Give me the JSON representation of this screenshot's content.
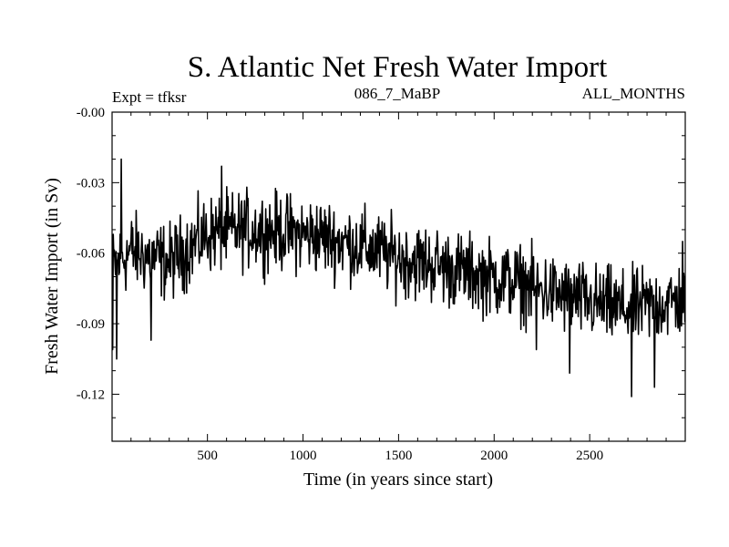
{
  "chart_data": {
    "type": "line",
    "title": "S. Atlantic Net Fresh Water Import",
    "subtitle_left": "Expt = tfksr",
    "subtitle_center": "086_7_MaBP",
    "subtitle_right": "ALL_MONTHS",
    "xlabel": "Time (in years since start)",
    "ylabel": "Fresh Water Import (in Sv)",
    "xlim": [
      1,
      3000
    ],
    "ylim": [
      -0.14,
      0.0
    ],
    "x_ticks": [
      500,
      1000,
      1500,
      2000,
      2500
    ],
    "x_tick_labels": [
      "500",
      "1000",
      "1500",
      "2000",
      "2500"
    ],
    "y_ticks": [
      0.0,
      -0.03,
      -0.06,
      -0.09,
      -0.12
    ],
    "y_tick_labels": [
      "-0.00",
      "-0.03",
      "-0.06",
      "-0.09",
      "-0.12"
    ],
    "y_minor_step": 0.01,
    "grid": false,
    "series": [
      {
        "name": "Net Fresh Water Import",
        "color": "#000000",
        "trend_x": [
          1,
          100,
          300,
          500,
          700,
          900,
          1100,
          1300,
          1500,
          1700,
          1900,
          2100,
          2300,
          2500,
          2700,
          2900,
          3000
        ],
        "trend_y": [
          -0.066,
          -0.059,
          -0.064,
          -0.052,
          -0.05,
          -0.051,
          -0.053,
          -0.057,
          -0.062,
          -0.065,
          -0.069,
          -0.072,
          -0.077,
          -0.081,
          -0.084,
          -0.081,
          -0.08
        ],
        "noise_amplitude": 0.008,
        "extremes": [
          {
            "x": 5,
            "y": -0.101
          },
          {
            "x": 25,
            "y": -0.105
          },
          {
            "x": 48,
            "y": -0.02
          },
          {
            "x": 205,
            "y": -0.097
          },
          {
            "x": 575,
            "y": -0.023
          },
          {
            "x": 2220,
            "y": -0.101
          },
          {
            "x": 2395,
            "y": -0.111
          },
          {
            "x": 2720,
            "y": -0.121
          },
          {
            "x": 2840,
            "y": -0.117
          },
          {
            "x": 2985,
            "y": -0.055
          }
        ]
      }
    ]
  }
}
